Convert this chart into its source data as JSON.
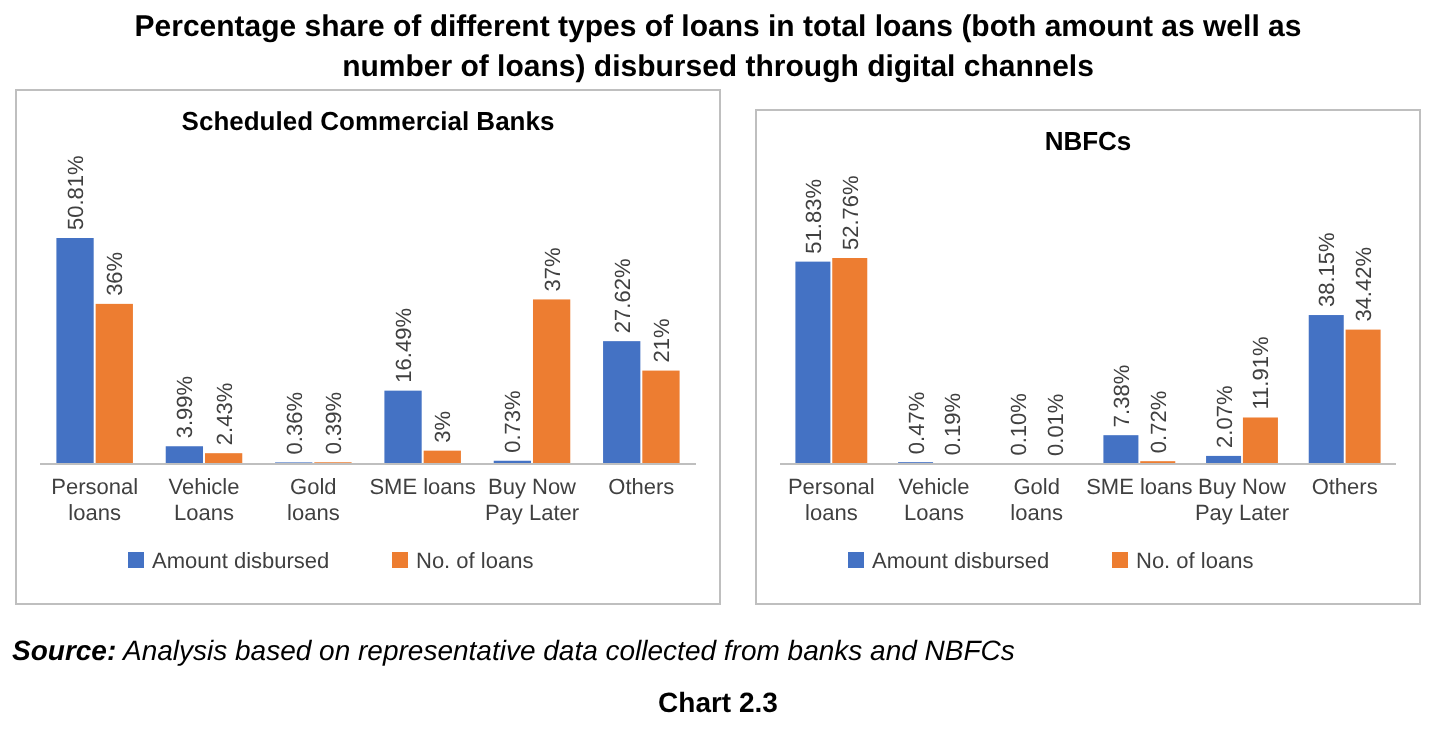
{
  "chart_data": [
    {
      "type": "bar",
      "title": "Percentage share of different types of loans in total loans (both amount as well as number of loans) disbursed through digital channels",
      "subtitle": "Scheduled Commercial Banks",
      "categories": [
        "Personal loans",
        "Vehicle Loans",
        "Gold loans",
        "SME loans",
        "Buy Now Pay Later",
        "Others"
      ],
      "series": [
        {
          "name": "Amount disbursed",
          "color": "#4472c4",
          "values": [
            50.81,
            3.99,
            0.36,
            16.49,
            0.73,
            27.62
          ],
          "value_labels": [
            "50.81%",
            "3.99%",
            "0.36%",
            "16.49%",
            "0.73%",
            "27.62%"
          ]
        },
        {
          "name": "No. of loans",
          "color": "#ed7d31",
          "values": [
            36,
            2.43,
            0.39,
            3,
            37,
            21
          ],
          "value_labels": [
            "36%",
            "2.43%",
            "0.39%",
            "3%",
            "37%",
            "21%"
          ]
        }
      ],
      "legend": "bottom"
    },
    {
      "type": "bar",
      "title": "NBFCs",
      "categories": [
        "Personal loans",
        "Vehicle Loans",
        "Gold loans",
        "SME loans",
        "Buy Now Pay Later",
        "Others"
      ],
      "series": [
        {
          "name": "Amount disbursed",
          "color": "#4472c4",
          "values": [
            51.83,
            0.47,
            0.1,
            7.38,
            2.07,
            38.15
          ],
          "value_labels": [
            "51.83%",
            "0.47%",
            "0.10%",
            "7.38%",
            "2.07%",
            "38.15%"
          ]
        },
        {
          "name": "No. of loans",
          "color": "#ed7d31",
          "values": [
            52.76,
            0.19,
            0.01,
            0.72,
            11.91,
            34.42
          ],
          "value_labels": [
            "52.76%",
            "0.19%",
            "0.01%",
            "0.72%",
            "11.91%",
            "34.42%"
          ]
        }
      ],
      "legend": "bottom",
      "annotations": [
        "Source: Analysis based on representative data collected from banks and NBFCs",
        "Chart 2.3"
      ]
    }
  ]
}
